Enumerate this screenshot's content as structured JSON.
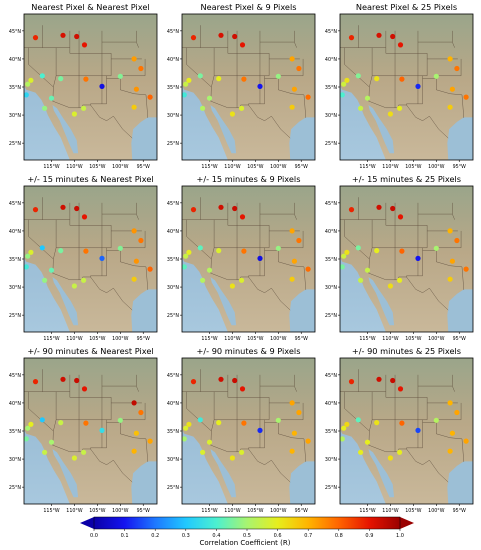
{
  "figure": {
    "colorbar_label": "Correlation Coefficient (R)",
    "colorbar_ticks": [
      "0.0",
      "0.1",
      "0.2",
      "0.3",
      "0.4",
      "0.5",
      "0.6",
      "0.7",
      "0.8",
      "0.9",
      "1.0"
    ],
    "colorbar_colors": [
      "#0a00a8",
      "#1414f0",
      "#1e78ff",
      "#20c8ff",
      "#4cf0d0",
      "#a8f470",
      "#e6ee1e",
      "#ffb400",
      "#ff6400",
      "#e61400",
      "#9a0000"
    ],
    "lat_ticks": [
      "45°N",
      "40°N",
      "35°N",
      "30°N",
      "25°N"
    ],
    "lon_ticks": [
      "115°W",
      "110°W",
      "105°W",
      "100°W",
      "95°W"
    ]
  },
  "chart_data": [
    {
      "type": "scatter",
      "title": "Nearest Pixel & Nearest Pixel",
      "xlim": [
        -121,
        -92
      ],
      "ylim": [
        22,
        48
      ],
      "x": [
        -118.5,
        -112.5,
        -109.5,
        -107.8,
        -117,
        -113,
        -120.2,
        -107.5,
        -104,
        -115,
        -120.5,
        -110,
        -108,
        -97,
        -95.5,
        -96.5,
        -93.5,
        -97,
        -116.5,
        -100,
        -119.5
      ],
      "y": [
        43.8,
        44.2,
        44,
        42.5,
        37,
        36.5,
        35.5,
        36.4,
        35.1,
        33,
        33.6,
        30.2,
        31.2,
        40,
        38.3,
        34.6,
        33.2,
        31.4,
        31.2,
        36.9,
        36.2
      ],
      "values": [
        0.88,
        0.92,
        0.93,
        0.9,
        0.4,
        0.45,
        0.52,
        0.78,
        0.08,
        0.43,
        0.33,
        0.58,
        0.55,
        0.73,
        0.78,
        0.74,
        0.8,
        0.66,
        0.48,
        0.46,
        0.58
      ]
    },
    {
      "type": "scatter",
      "title": "Nearest Pixel & 9 Pixels",
      "xlim": [
        -121,
        -92
      ],
      "ylim": [
        22,
        48
      ],
      "x": [
        -118.5,
        -112.5,
        -109.5,
        -107.8,
        -117,
        -113,
        -120.2,
        -107.5,
        -104,
        -115,
        -120.5,
        -110,
        -108,
        -97,
        -95.5,
        -96.5,
        -93.5,
        -97,
        -116.5,
        -100,
        -119.5
      ],
      "y": [
        43.8,
        44.2,
        44,
        42.5,
        37,
        36.5,
        35.5,
        36.4,
        35.1,
        33,
        33.6,
        30.2,
        31.2,
        40,
        38.3,
        34.6,
        33.2,
        31.4,
        31.2,
        36.9,
        36.2
      ],
      "values": [
        0.88,
        0.92,
        0.93,
        0.9,
        0.45,
        0.6,
        0.55,
        0.78,
        0.1,
        0.5,
        0.38,
        0.62,
        0.58,
        0.72,
        0.78,
        0.72,
        0.79,
        0.66,
        0.52,
        0.48,
        0.6
      ]
    },
    {
      "type": "scatter",
      "title": "Nearest Pixel & 25 Pixels",
      "xlim": [
        -121,
        -92
      ],
      "ylim": [
        22,
        48
      ],
      "x": [
        -118.5,
        -112.5,
        -109.5,
        -107.8,
        -117,
        -113,
        -120.2,
        -107.5,
        -104,
        -115,
        -120.5,
        -110,
        -108,
        -97,
        -95.5,
        -96.5,
        -93.5,
        -97,
        -116.5,
        -100,
        -119.5
      ],
      "y": [
        43.8,
        44.2,
        44,
        42.5,
        37,
        36.5,
        35.5,
        36.4,
        35.1,
        33,
        33.6,
        30.2,
        31.2,
        40,
        38.3,
        34.6,
        33.2,
        31.4,
        31.2,
        36.9,
        36.2
      ],
      "values": [
        0.88,
        0.92,
        0.93,
        0.9,
        0.46,
        0.62,
        0.56,
        0.8,
        0.12,
        0.52,
        0.4,
        0.63,
        0.6,
        0.7,
        0.78,
        0.72,
        0.78,
        0.66,
        0.55,
        0.5,
        0.62
      ]
    },
    {
      "type": "scatter",
      "title": "+/- 15 minutes & Nearest Pixel",
      "xlim": [
        -121,
        -92
      ],
      "ylim": [
        22,
        48
      ],
      "x": [
        -118.5,
        -112.5,
        -109.5,
        -107.8,
        -117,
        -113,
        -120.2,
        -107.5,
        -104,
        -115,
        -120.5,
        -110,
        -108,
        -97,
        -95.5,
        -96.5,
        -93.5,
        -97,
        -116.5,
        -100,
        -119.5
      ],
      "y": [
        43.8,
        44.2,
        44,
        42.5,
        37,
        36.5,
        35.5,
        36.4,
        35.1,
        33,
        33.6,
        30.2,
        31.2,
        40,
        38.3,
        34.6,
        33.2,
        31.4,
        31.2,
        36.9,
        36.2
      ],
      "values": [
        0.88,
        0.93,
        0.94,
        0.9,
        0.3,
        0.45,
        0.48,
        0.78,
        0.18,
        0.43,
        0.38,
        0.55,
        0.55,
        0.74,
        0.78,
        0.74,
        0.8,
        0.66,
        0.48,
        0.46,
        0.58
      ]
    },
    {
      "type": "scatter",
      "title": "+/- 15 minutes & 9 Pixels",
      "xlim": [
        -121,
        -92
      ],
      "ylim": [
        22,
        48
      ],
      "x": [
        -118.5,
        -112.5,
        -109.5,
        -107.8,
        -117,
        -113,
        -120.2,
        -107.5,
        -104,
        -115,
        -120.5,
        -110,
        -108,
        -97,
        -95.5,
        -96.5,
        -93.5,
        -97,
        -116.5,
        -100,
        -119.5
      ],
      "y": [
        43.8,
        44.2,
        44,
        42.5,
        37,
        36.5,
        35.5,
        36.4,
        35.1,
        33,
        33.6,
        30.2,
        31.2,
        40,
        38.3,
        34.6,
        33.2,
        31.4,
        31.2,
        36.9,
        36.2
      ],
      "values": [
        0.88,
        0.93,
        0.94,
        0.9,
        0.42,
        0.58,
        0.55,
        0.78,
        0.08,
        0.52,
        0.42,
        0.62,
        0.58,
        0.72,
        0.78,
        0.72,
        0.79,
        0.66,
        0.52,
        0.48,
        0.6
      ]
    },
    {
      "type": "scatter",
      "title": "+/- 15 minutes & 25 Pixels",
      "xlim": [
        -121,
        -92
      ],
      "ylim": [
        22,
        48
      ],
      "x": [
        -118.5,
        -112.5,
        -109.5,
        -107.8,
        -117,
        -113,
        -120.2,
        -107.5,
        -104,
        -115,
        -120.5,
        -110,
        -108,
        -97,
        -95.5,
        -96.5,
        -93.5,
        -97,
        -116.5,
        -100,
        -119.5
      ],
      "y": [
        43.8,
        44.2,
        44,
        42.5,
        37,
        36.5,
        35.5,
        36.4,
        35.1,
        33,
        33.6,
        30.2,
        31.2,
        40,
        38.3,
        34.6,
        33.2,
        31.4,
        31.2,
        36.9,
        36.2
      ],
      "values": [
        0.88,
        0.93,
        0.94,
        0.9,
        0.45,
        0.6,
        0.56,
        0.8,
        0.1,
        0.55,
        0.45,
        0.63,
        0.6,
        0.7,
        0.78,
        0.72,
        0.78,
        0.66,
        0.55,
        0.5,
        0.62
      ]
    },
    {
      "type": "scatter",
      "title": "+/- 90 minutes & Nearest Pixel",
      "xlim": [
        -121,
        -92
      ],
      "ylim": [
        22,
        48
      ],
      "x": [
        -118.5,
        -112.5,
        -109.5,
        -107.8,
        -117,
        -113,
        -120.2,
        -107.5,
        -104,
        -115,
        -120.5,
        -110,
        -108,
        -97,
        -95.5,
        -96.5,
        -93.5,
        -97,
        -116.5,
        -100,
        -119.5
      ],
      "y": [
        43.8,
        44.2,
        44,
        42.5,
        37,
        36.5,
        35.5,
        36.4,
        35.1,
        33,
        33.6,
        30.2,
        31.2,
        40,
        38.3,
        34.6,
        33.2,
        31.4,
        31.2,
        36.9,
        36.2
      ],
      "values": [
        0.88,
        0.93,
        0.94,
        0.9,
        0.3,
        0.55,
        0.5,
        0.78,
        0.35,
        0.5,
        0.45,
        0.58,
        0.55,
        0.95,
        0.78,
        0.68,
        0.72,
        0.7,
        0.55,
        0.48,
        0.6
      ]
    },
    {
      "type": "scatter",
      "title": "+/- 90 minutes & 9 Pixels",
      "xlim": [
        -121,
        -92
      ],
      "ylim": [
        22,
        48
      ],
      "x": [
        -118.5,
        -112.5,
        -109.5,
        -107.8,
        -117,
        -113,
        -120.2,
        -107.5,
        -104,
        -115,
        -120.5,
        -110,
        -108,
        -97,
        -95.5,
        -96.5,
        -93.5,
        -97,
        -116.5,
        -100,
        -119.5
      ],
      "y": [
        43.8,
        44.2,
        44,
        42.5,
        37,
        36.5,
        35.5,
        36.4,
        35.1,
        33,
        33.6,
        30.2,
        31.2,
        40,
        38.3,
        34.6,
        33.2,
        31.4,
        31.2,
        36.9,
        36.2
      ],
      "values": [
        0.88,
        0.93,
        0.94,
        0.9,
        0.38,
        0.6,
        0.58,
        0.78,
        0.12,
        0.58,
        0.5,
        0.62,
        0.58,
        0.72,
        0.72,
        0.7,
        0.72,
        0.7,
        0.58,
        0.5,
        0.62
      ]
    },
    {
      "type": "scatter",
      "title": "+/- 90 minutes & 25 Pixels",
      "xlim": [
        -121,
        -92
      ],
      "ylim": [
        22,
        48
      ],
      "x": [
        -118.5,
        -112.5,
        -109.5,
        -107.8,
        -117,
        -113,
        -120.2,
        -107.5,
        -104,
        -115,
        -120.5,
        -110,
        -108,
        -97,
        -95.5,
        -96.5,
        -93.5,
        -97,
        -116.5,
        -100,
        -119.5
      ],
      "y": [
        43.8,
        44.2,
        44,
        42.5,
        37,
        36.5,
        35.5,
        36.4,
        35.1,
        33,
        33.6,
        30.2,
        31.2,
        40,
        38.3,
        34.6,
        33.2,
        31.4,
        31.2,
        36.9,
        36.2
      ],
      "values": [
        0.88,
        0.93,
        0.94,
        0.9,
        0.42,
        0.62,
        0.6,
        0.8,
        0.15,
        0.6,
        0.52,
        0.63,
        0.6,
        0.7,
        0.72,
        0.7,
        0.72,
        0.7,
        0.6,
        0.52,
        0.64
      ]
    }
  ]
}
